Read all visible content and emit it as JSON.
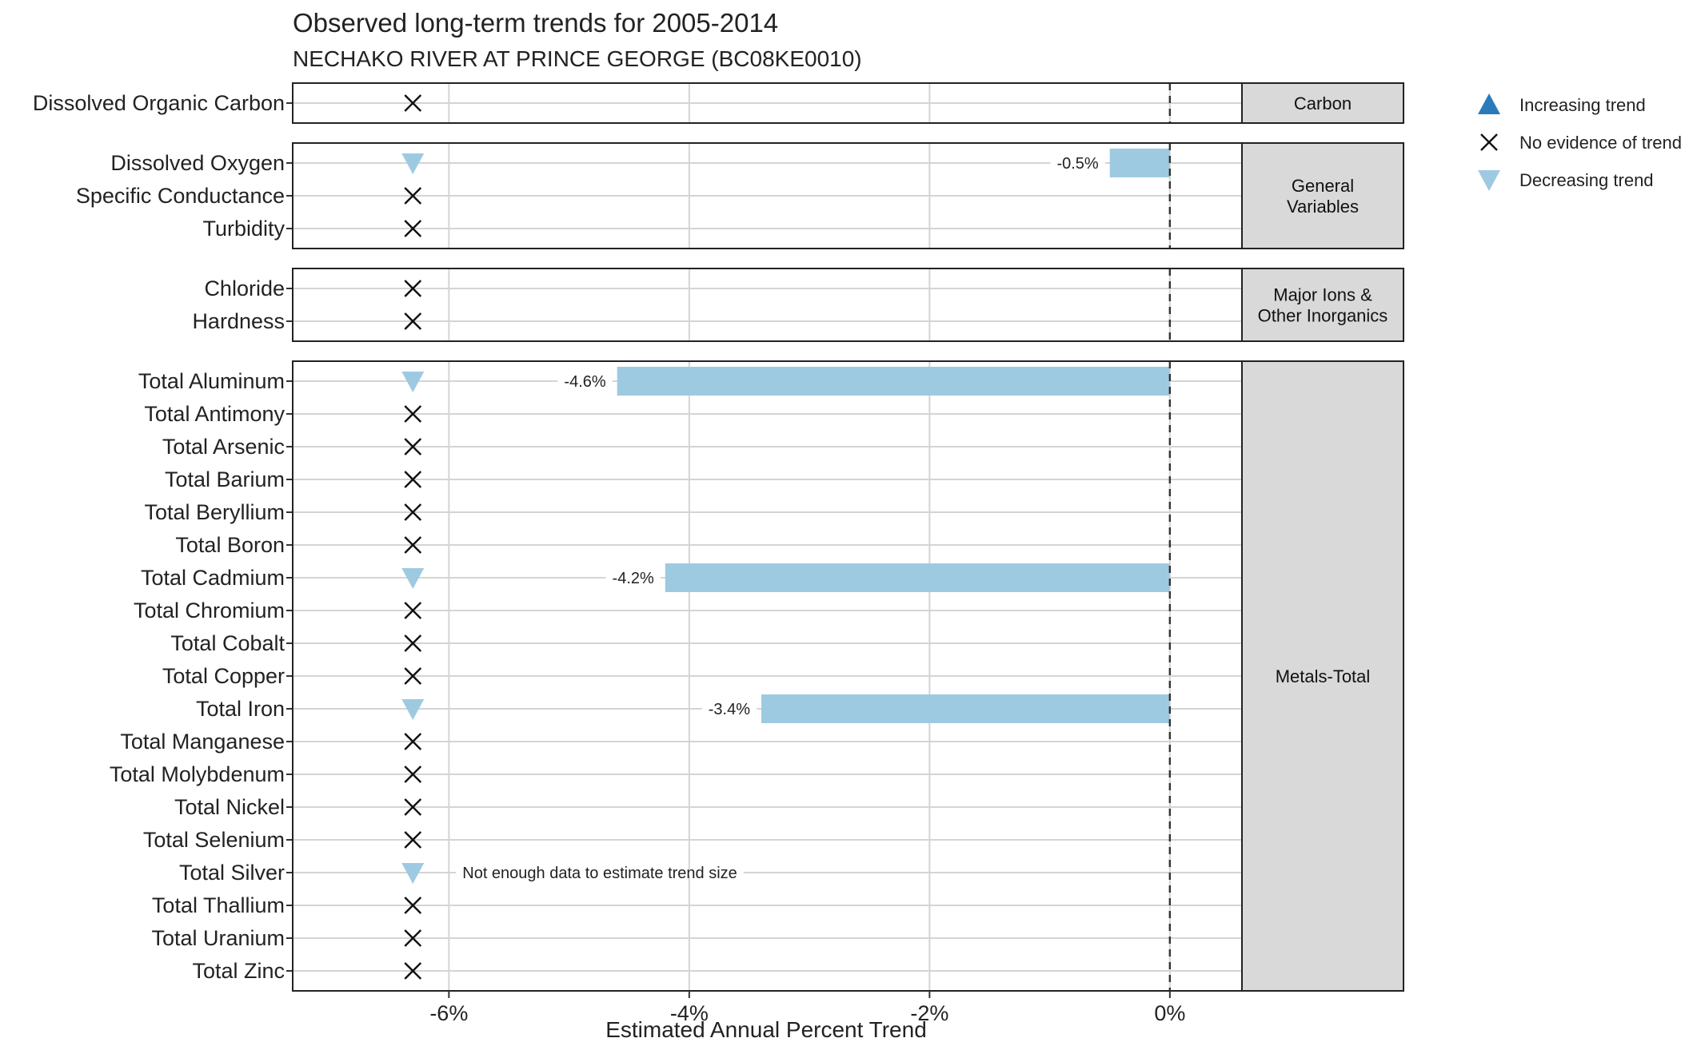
{
  "chart_data": {
    "type": "bar",
    "title": "Observed long-term trends for 2005-2014",
    "subtitle": "NECHAKO RIVER AT PRINCE GEORGE (BC08KE0010)",
    "xlabel": "Estimated Annual Percent Trend",
    "ylabel": "",
    "xlim": [
      -7.3,
      0.6
    ],
    "x_ticks": [
      -6,
      -4,
      -2,
      0
    ],
    "x_tick_labels": [
      "-6%",
      "-4%",
      "-2%",
      "0%"
    ],
    "reference_line": 0,
    "grid": true,
    "legend_position": "right",
    "colors": {
      "increasing": "#2b7bba",
      "decreasing": "#9ecae1",
      "no_trend": "#111111",
      "strip_fill": "#d9d9d9",
      "grid": "#d4d4d4"
    },
    "legend": [
      {
        "key": "increasing",
        "label": "Increasing trend"
      },
      {
        "key": "none",
        "label": "No evidence of trend"
      },
      {
        "key": "decreasing",
        "label": "Decreasing trend"
      }
    ],
    "panels": [
      {
        "strip": [
          "Carbon"
        ],
        "rows": [
          {
            "variable": "Dissolved Organic Carbon",
            "trend": "none"
          }
        ]
      },
      {
        "strip": [
          "General",
          "Variables"
        ],
        "rows": [
          {
            "variable": "Dissolved Oxygen",
            "trend": "decreasing",
            "value": -0.5,
            "label": "-0.5%"
          },
          {
            "variable": "Specific Conductance",
            "trend": "none"
          },
          {
            "variable": "Turbidity",
            "trend": "none"
          }
        ]
      },
      {
        "strip": [
          "Major Ions &",
          "Other Inorganics"
        ],
        "rows": [
          {
            "variable": "Chloride",
            "trend": "none"
          },
          {
            "variable": "Hardness",
            "trend": "none"
          }
        ]
      },
      {
        "strip": [
          "Metals-Total"
        ],
        "rows": [
          {
            "variable": "Total Aluminum",
            "trend": "decreasing",
            "value": -4.6,
            "label": "-4.6%"
          },
          {
            "variable": "Total Antimony",
            "trend": "none"
          },
          {
            "variable": "Total Arsenic",
            "trend": "none"
          },
          {
            "variable": "Total Barium",
            "trend": "none"
          },
          {
            "variable": "Total Beryllium",
            "trend": "none"
          },
          {
            "variable": "Total Boron",
            "trend": "none"
          },
          {
            "variable": "Total Cadmium",
            "trend": "decreasing",
            "value": -4.2,
            "label": "-4.2%"
          },
          {
            "variable": "Total Chromium",
            "trend": "none"
          },
          {
            "variable": "Total Cobalt",
            "trend": "none"
          },
          {
            "variable": "Total Copper",
            "trend": "none"
          },
          {
            "variable": "Total Iron",
            "trend": "decreasing",
            "value": -3.4,
            "label": "-3.4%"
          },
          {
            "variable": "Total Manganese",
            "trend": "none"
          },
          {
            "variable": "Total Molybdenum",
            "trend": "none"
          },
          {
            "variable": "Total Nickel",
            "trend": "none"
          },
          {
            "variable": "Total Selenium",
            "trend": "none"
          },
          {
            "variable": "Total Silver",
            "trend": "decreasing",
            "note": "Not enough data to estimate trend size"
          },
          {
            "variable": "Total Thallium",
            "trend": "none"
          },
          {
            "variable": "Total Uranium",
            "trend": "none"
          },
          {
            "variable": "Total Zinc",
            "trend": "none"
          }
        ]
      }
    ]
  }
}
